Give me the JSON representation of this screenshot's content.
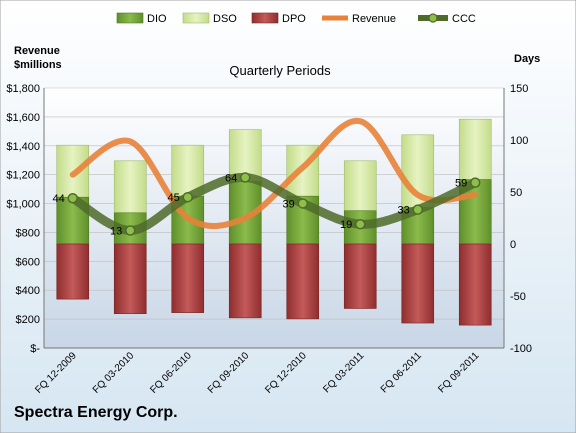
{
  "chart_data": {
    "type": "bar",
    "title": "Quarterly Periods",
    "company": "Spectra Energy Corp.",
    "y_left_label_line1": "Revenue",
    "y_left_label_line2": "$millions",
    "y_right_label": "Days",
    "y_left": {
      "min": 0,
      "max": 1800,
      "step": 200,
      "tick_labels": [
        "$-",
        "$200",
        "$400",
        "$600",
        "$800",
        "$1,000",
        "$1,200",
        "$1,400",
        "$1,600",
        "$1,800"
      ]
    },
    "y_right": {
      "min": -100,
      "max": 150,
      "step": 50,
      "tick_labels": [
        "-100",
        "-50",
        "0",
        "50",
        "100",
        "150"
      ]
    },
    "categories": [
      "FQ 12-2009",
      "FQ 03-2010",
      "FQ 06-2010",
      "FQ 09-2010",
      "FQ 12-2010",
      "FQ 03-2011",
      "FQ 06-2011",
      "FQ 09-2011"
    ],
    "legend": [
      "DIO",
      "DSO",
      "DPO",
      "Revenue",
      "CCC"
    ],
    "legend_position": "top",
    "grid": true,
    "series": [
      {
        "name": "DIO",
        "axis": "right",
        "values": [
          45,
          30,
          46,
          60,
          46,
          32,
          35,
          62
        ]
      },
      {
        "name": "DSO",
        "axis": "right",
        "values": [
          95,
          80,
          95,
          110,
          95,
          80,
          105,
          120
        ]
      },
      {
        "name": "DPO",
        "axis": "right",
        "values": [
          -53,
          -67,
          -66,
          -71,
          -72,
          -62,
          -76,
          -78
        ]
      },
      {
        "name": "Revenue",
        "axis": "left",
        "values": [
          1200,
          1430,
          900,
          900,
          1250,
          1570,
          1060,
          1060
        ]
      },
      {
        "name": "CCC",
        "axis": "right",
        "values": [
          44,
          13,
          45,
          64,
          39,
          19,
          33,
          59
        ]
      }
    ],
    "ccc_labels": [
      "44",
      "13",
      "45",
      "64",
      "39",
      "19",
      "33",
      "59"
    ]
  },
  "colors": {
    "background_top": "#ffffff",
    "background_bottom": "#d6e6f2",
    "plot_top": "#ffffff",
    "plot_bottom": "#c8d6e6",
    "dio": "#76a43a",
    "dio_edge": "#4f7a20",
    "dso": "#d3e7a3",
    "dso_edge": "#9fba6a",
    "dpo": "#a83e3e",
    "dpo_edge": "#7a2424",
    "revenue": "#e8823a",
    "ccc": "#4f6b2a",
    "ccc_marker": "#8cc04a",
    "grid": "#bdbdbd"
  }
}
